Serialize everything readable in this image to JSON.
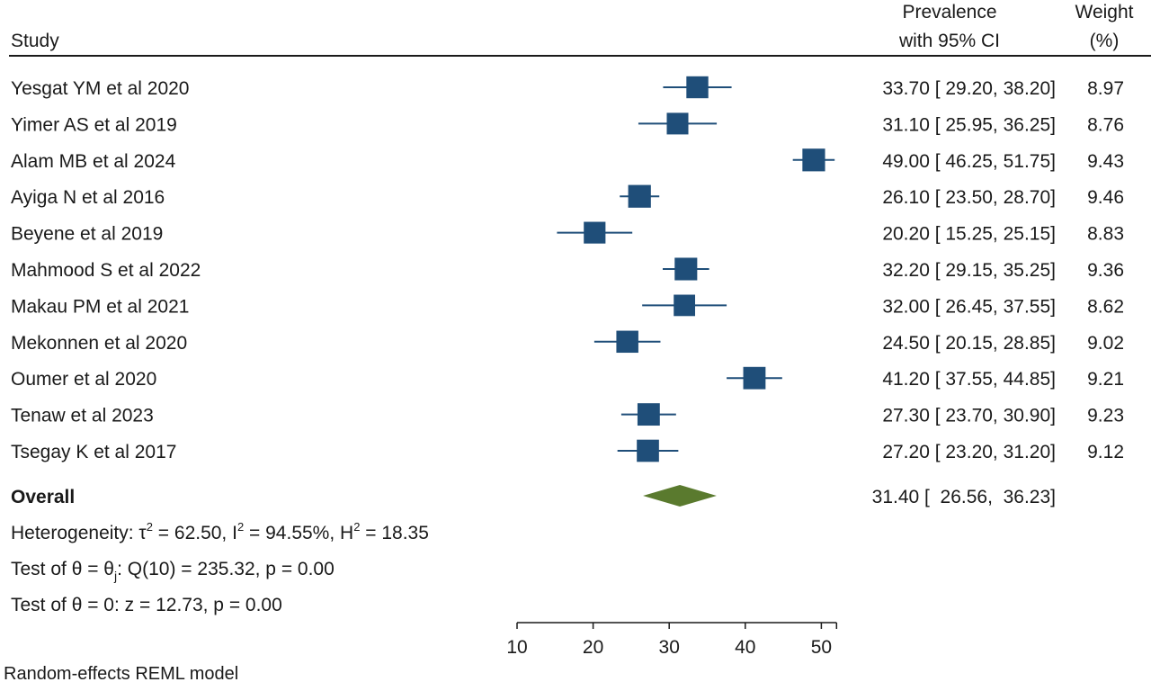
{
  "header": {
    "study_col": "Study",
    "est_col_line1": "Prevalence",
    "est_col_line2": "with 95% CI",
    "weight_col_line1": "Weight",
    "weight_col_line2": "(%)"
  },
  "chart_data": {
    "type": "forest",
    "studies": [
      {
        "name": "Yesgat YM et al 2020",
        "est": 33.7,
        "lo": 29.2,
        "hi": 38.2,
        "weight": 8.97,
        "ci_text": "33.70 [  29.20,  38.20]",
        "weight_text": "8.97"
      },
      {
        "name": "Yimer AS et al 2019",
        "est": 31.1,
        "lo": 25.95,
        "hi": 36.25,
        "weight": 8.76,
        "ci_text": "31.10 [  25.95,  36.25]",
        "weight_text": "8.76"
      },
      {
        "name": "Alam MB et al 2024",
        "est": 49.0,
        "lo": 46.25,
        "hi": 51.75,
        "weight": 9.43,
        "ci_text": "49.00 [  46.25,  51.75]",
        "weight_text": "9.43"
      },
      {
        "name": "Ayiga N et al 2016",
        "est": 26.1,
        "lo": 23.5,
        "hi": 28.7,
        "weight": 9.46,
        "ci_text": "26.10 [  23.50,  28.70]",
        "weight_text": "9.46"
      },
      {
        "name": "Beyene et al 2019",
        "est": 20.2,
        "lo": 15.25,
        "hi": 25.15,
        "weight": 8.83,
        "ci_text": "20.20 [  15.25,  25.15]",
        "weight_text": "8.83"
      },
      {
        "name": "Mahmood S et al 2022",
        "est": 32.2,
        "lo": 29.15,
        "hi": 35.25,
        "weight": 9.36,
        "ci_text": "32.20 [  29.15,  35.25]",
        "weight_text": "9.36"
      },
      {
        "name": "Makau PM et al 2021",
        "est": 32.0,
        "lo": 26.45,
        "hi": 37.55,
        "weight": 8.62,
        "ci_text": "32.00 [  26.45,  37.55]",
        "weight_text": "8.62"
      },
      {
        "name": "Mekonnen et al 2020",
        "est": 24.5,
        "lo": 20.15,
        "hi": 28.85,
        "weight": 9.02,
        "ci_text": "24.50 [  20.15,  28.85]",
        "weight_text": "9.02"
      },
      {
        "name": "Oumer et al 2020",
        "est": 41.2,
        "lo": 37.55,
        "hi": 44.85,
        "weight": 9.21,
        "ci_text": "41.20 [  37.55,  44.85]",
        "weight_text": "9.21"
      },
      {
        "name": "Tenaw et al 2023",
        "est": 27.3,
        "lo": 23.7,
        "hi": 30.9,
        "weight": 9.23,
        "ci_text": "27.30 [  23.70,  30.90]",
        "weight_text": "9.23"
      },
      {
        "name": "Tsegay K et al 2017",
        "est": 27.2,
        "lo": 23.2,
        "hi": 31.2,
        "weight": 9.12,
        "ci_text": "27.20 [  23.20,  31.20]",
        "weight_text": "9.12"
      }
    ],
    "overall": {
      "name": "Overall",
      "est": 31.4,
      "lo": 26.56,
      "hi": 36.23,
      "ci_text": "31.40 [  26.56,  36.23]"
    },
    "x_ticks": [
      10,
      20,
      30,
      40,
      50
    ],
    "xlim": [
      10,
      52
    ],
    "colors": {
      "marker": "#1f4e79",
      "diamond": "#5a7a2e",
      "ci_line": "#1f4e79",
      "text": "#1a1a1a"
    }
  },
  "stats": {
    "heterogeneity": {
      "prefix": "Heterogeneity: τ",
      "tau_exp": "2",
      "mid1": " = 62.50, I",
      "i_exp": "2",
      "mid2": " = 94.55%, H",
      "h_exp": "2",
      "suffix": " = 18.35"
    },
    "test_theta_j": {
      "prefix": "Test of θ = θ",
      "sub": "j",
      "suffix": ": Q(10) = 235.32, p = 0.00"
    },
    "test_theta_0": "Test of θ = 0: z = 12.73, p = 0.00"
  },
  "footer": "Random-effects REML model"
}
